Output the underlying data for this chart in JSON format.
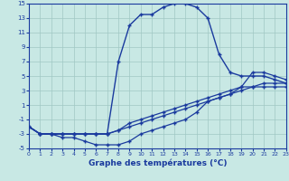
{
  "xlabel": "Graphe des températures (°C)",
  "bg_color": "#c8e8e4",
  "line_color": "#1a3a9e",
  "grid_color": "#a0c8c4",
  "xlim": [
    0,
    23
  ],
  "ylim": [
    -5,
    15
  ],
  "xticks": [
    0,
    1,
    2,
    3,
    4,
    5,
    6,
    7,
    8,
    9,
    10,
    11,
    12,
    13,
    14,
    15,
    16,
    17,
    18,
    19,
    20,
    21,
    22,
    23
  ],
  "yticks": [
    -5,
    -3,
    -1,
    1,
    3,
    5,
    7,
    9,
    11,
    13,
    15
  ],
  "curve_arch_x": [
    0,
    1,
    2,
    3,
    4,
    5,
    6,
    7,
    8,
    9,
    10,
    11,
    12,
    13,
    14,
    15,
    16,
    17,
    18,
    19,
    20,
    21,
    22,
    23
  ],
  "curve_arch_y": [
    -2,
    -3,
    -3,
    -3,
    -3,
    -3,
    -3,
    -3,
    7,
    12,
    13.5,
    13.5,
    14.5,
    15,
    15,
    14.5,
    13,
    8,
    5.5,
    5,
    5,
    5,
    4.5,
    4
  ],
  "curve_diag1_x": [
    0,
    1,
    2,
    3,
    4,
    5,
    6,
    7,
    8,
    9,
    10,
    11,
    12,
    13,
    14,
    15,
    16,
    17,
    18,
    19,
    20,
    21,
    22,
    23
  ],
  "curve_diag1_y": [
    -2,
    -3,
    -3,
    -3,
    -3,
    -3,
    -3,
    -3,
    -2.5,
    -2,
    -1.5,
    -1,
    -0.5,
    0,
    0.5,
    1,
    1.5,
    2,
    2.5,
    3,
    3.5,
    4,
    4,
    4
  ],
  "curve_dip_x": [
    0,
    1,
    2,
    3,
    4,
    5,
    6,
    7,
    8,
    9,
    10,
    11,
    12,
    13,
    14,
    15,
    16,
    17,
    18,
    19,
    20,
    21,
    22,
    23
  ],
  "curve_dip_y": [
    -2,
    -3,
    -3,
    -3.5,
    -3.5,
    -4,
    -4.5,
    -4.5,
    -4.5,
    -4,
    -3,
    -2.5,
    -2,
    -1.5,
    -1,
    0,
    1.5,
    2,
    2.5,
    3.5,
    5.5,
    5.5,
    5,
    4.5
  ],
  "curve_diag2_x": [
    0,
    1,
    2,
    3,
    4,
    5,
    6,
    7,
    8,
    9,
    10,
    11,
    12,
    13,
    14,
    15,
    16,
    17,
    18,
    19,
    20,
    21,
    22,
    23
  ],
  "curve_diag2_y": [
    -2,
    -3,
    -3,
    -3,
    -3,
    -3,
    -3,
    -3,
    -2.5,
    -1.5,
    -1,
    -0.5,
    0,
    0.5,
    1,
    1.5,
    2,
    2.5,
    3,
    3.5,
    3.5,
    3.5,
    3.5,
    3.5
  ]
}
